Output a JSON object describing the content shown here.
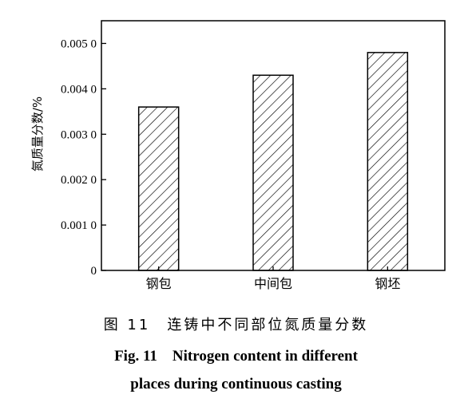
{
  "chart_data": {
    "type": "bar",
    "categories": [
      "钢包",
      "中间包",
      "钢坯"
    ],
    "values": [
      0.0036,
      0.0043,
      0.0048
    ],
    "ylabel": "氮质量分数/%",
    "xlabel": "",
    "ylim": [
      0,
      0.0055
    ],
    "yticks": [
      0,
      0.001,
      0.002,
      0.003,
      0.004,
      0.005
    ],
    "ytick_labels": [
      "0",
      "0.001 0",
      "0.002 0",
      "0.003 0",
      "0.004 0",
      "0.005 0"
    ],
    "grid": false,
    "bar_fill": "diagonal-hatch",
    "bar_color": "#000000"
  },
  "caption": {
    "cn": "图 11　连铸中不同部位氮质量分数",
    "en_line1": "Fig. 11　Nitrogen content in different",
    "en_line2": "places during continuous casting"
  }
}
